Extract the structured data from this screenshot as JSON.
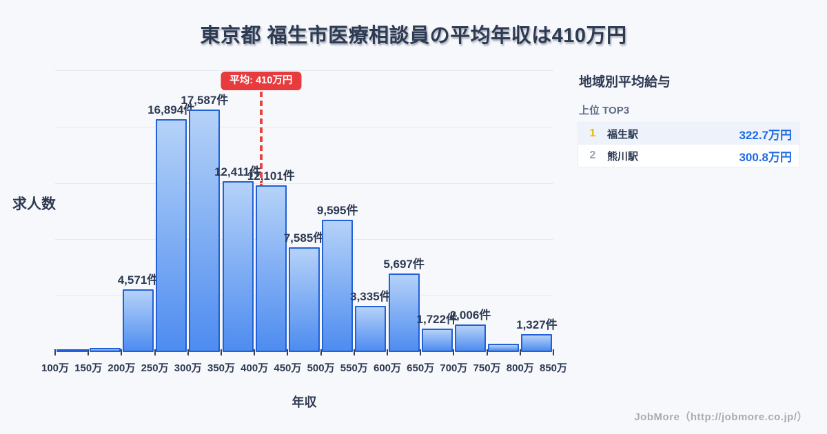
{
  "title": "東京都 福生市医療相談員の平均年収は410万円",
  "chart_data": {
    "type": "bar",
    "title": "東京都 福生市医療相談員の平均年収は410万円",
    "xlabel": "年収",
    "ylabel": "求人数",
    "unit": "件",
    "x_ticks": [
      "100万",
      "150万",
      "200万",
      "250万",
      "300万",
      "350万",
      "400万",
      "450万",
      "500万",
      "550万",
      "600万",
      "650万",
      "700万",
      "750万",
      "800万",
      "850万"
    ],
    "bin_ranges_man": [
      [
        100,
        150
      ],
      [
        150,
        200
      ],
      [
        200,
        250
      ],
      [
        250,
        300
      ],
      [
        300,
        350
      ],
      [
        350,
        400
      ],
      [
        400,
        450
      ],
      [
        450,
        500
      ],
      [
        500,
        550
      ],
      [
        550,
        600
      ],
      [
        600,
        650
      ],
      [
        650,
        700
      ],
      [
        700,
        750
      ],
      [
        750,
        800
      ],
      [
        800,
        850
      ]
    ],
    "values": [
      180,
      280,
      4571,
      16894,
      17587,
      12411,
      12101,
      7585,
      9595,
      3335,
      5697,
      1722,
      2006,
      600,
      1327
    ],
    "bar_labels": [
      "",
      "",
      "4,571件",
      "16,894件",
      "17,587件",
      "12,411件",
      "12,101件",
      "7,585件",
      "9,595件",
      "3,335件",
      "5,697件",
      "1,722件",
      "2,006件",
      "",
      "1,327件"
    ],
    "average": {
      "label": "平均: 410万円",
      "value_man": 410
    },
    "axis": {
      "x_min_man": 100,
      "x_max_man": 850,
      "y_min": 0,
      "y_max": 20450,
      "gridline_count": 5,
      "grid": true
    },
    "legend": "none"
  },
  "sidebar": {
    "title": "地域別平均給与",
    "subtitle": "上位 TOP3",
    "rows": [
      {
        "rank": "1",
        "station": "福生駅",
        "value": "322.7万円"
      },
      {
        "rank": "2",
        "station": "熊川駅",
        "value": "300.8万円"
      }
    ]
  },
  "footer": {
    "credit": "JobMore（http://jobmore.co.jp/）"
  },
  "colors": {
    "background": "#f7f8fb",
    "title_text": "#2d3a52",
    "bar_border": "#2160d6",
    "bar_gradient_top": "#b5d2f8",
    "bar_gradient_bottom": "#4e8cf0",
    "average_red": "#e73b3e",
    "gridline": "#e3e8f1",
    "tick_mark": "#37415a",
    "rank1_gold": "#f0b400",
    "rank2_gray": "#9aa3b0",
    "salary_blue": "#1d6ae5",
    "subtitle_gray_blue": "#5c6b84",
    "footer_gray": "#a8acb4",
    "row_highlight_bg": "#edf2fb"
  }
}
